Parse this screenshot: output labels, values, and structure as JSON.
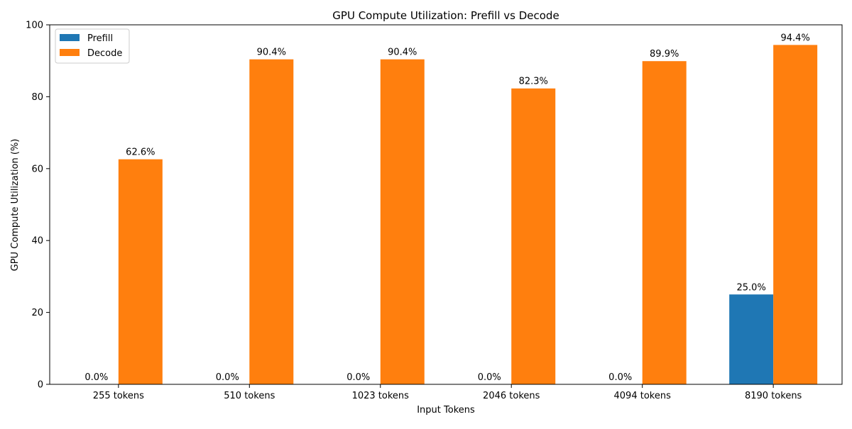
{
  "chart_data": {
    "type": "bar",
    "title": "GPU Compute Utilization: Prefill vs Decode",
    "xlabel": "Input Tokens",
    "ylabel": "GPU Compute Utilization (%)",
    "categories": [
      "255 tokens",
      "510 tokens",
      "1023 tokens",
      "2046 tokens",
      "4094 tokens",
      "8190 tokens"
    ],
    "series": [
      {
        "name": "Prefill",
        "color": "#1f77b4",
        "values": [
          0.0,
          0.0,
          0.0,
          0.0,
          0.0,
          25.0
        ],
        "labels": [
          "0.0%",
          "0.0%",
          "0.0%",
          "0.0%",
          "0.0%",
          "25.0%"
        ]
      },
      {
        "name": "Decode",
        "color": "#ff7f0e",
        "values": [
          62.6,
          90.4,
          90.4,
          82.3,
          89.9,
          94.4
        ],
        "labels": [
          "62.6%",
          "90.4%",
          "90.4%",
          "82.3%",
          "89.9%",
          "94.4%"
        ]
      }
    ],
    "ylim": [
      0,
      100
    ],
    "yticks": [
      0,
      20,
      40,
      60,
      80,
      100
    ],
    "grid": false,
    "legend": "top-left"
  }
}
